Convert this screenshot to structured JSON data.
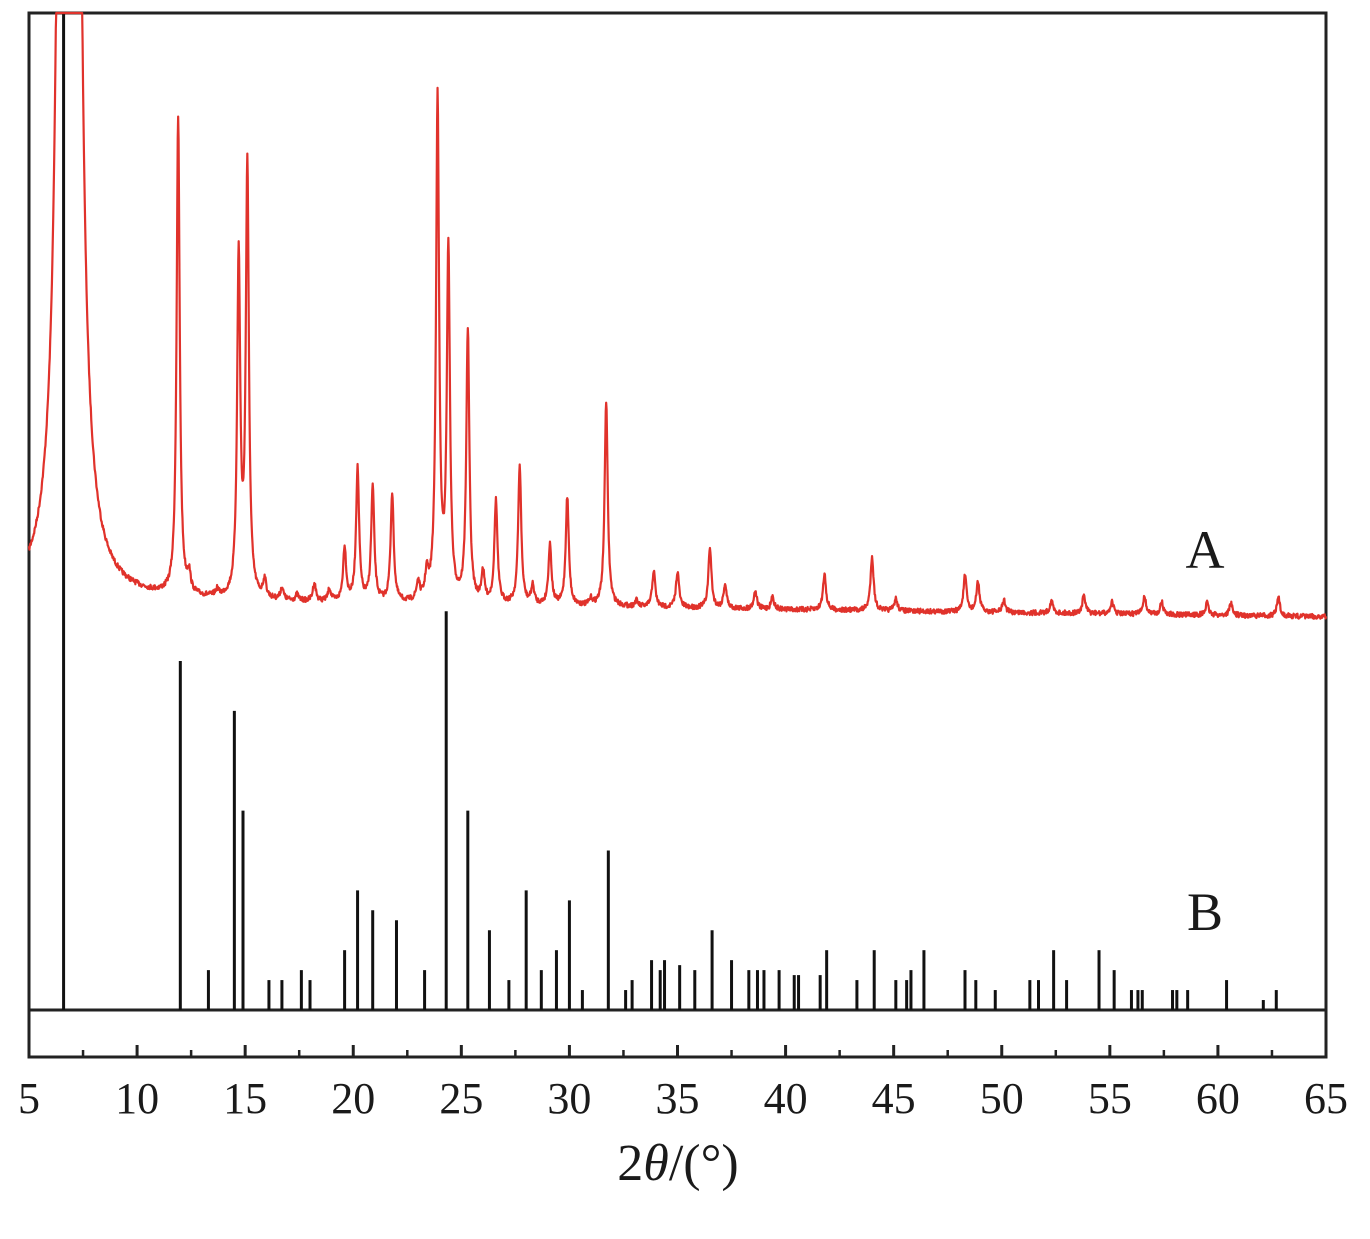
{
  "chart_data": {
    "type": "line",
    "xlabel_prefix": "2",
    "xlabel_symbol": "θ",
    "xlabel_suffix": "/(°)",
    "xlim": [
      5,
      65
    ],
    "xticks": [
      5,
      10,
      15,
      20,
      25,
      30,
      35,
      40,
      45,
      50,
      55,
      60,
      65
    ],
    "grid": false,
    "series": [
      {
        "name": "A",
        "style": "continuous pattern",
        "color": "#e0322b",
        "description_peaks": [
          {
            "x": 6.6,
            "y": 280
          },
          {
            "x": 7.1,
            "y": 300
          },
          {
            "x": 11.9,
            "y": 79
          },
          {
            "x": 12.4,
            "y": 3
          },
          {
            "x": 13.7,
            "y": 1
          },
          {
            "x": 14.7,
            "y": 56
          },
          {
            "x": 15.1,
            "y": 71
          },
          {
            "x": 15.9,
            "y": 3
          },
          {
            "x": 16.7,
            "y": 2
          },
          {
            "x": 17.4,
            "y": 1
          },
          {
            "x": 18.2,
            "y": 3
          },
          {
            "x": 18.9,
            "y": 2
          },
          {
            "x": 19.6,
            "y": 9
          },
          {
            "x": 20.2,
            "y": 22
          },
          {
            "x": 20.9,
            "y": 19
          },
          {
            "x": 21.8,
            "y": 18
          },
          {
            "x": 23.0,
            "y": 3
          },
          {
            "x": 23.4,
            "y": 4
          },
          {
            "x": 23.9,
            "y": 83
          },
          {
            "x": 24.4,
            "y": 58
          },
          {
            "x": 25.3,
            "y": 45
          },
          {
            "x": 26.0,
            "y": 5
          },
          {
            "x": 26.6,
            "y": 17
          },
          {
            "x": 27.7,
            "y": 23
          },
          {
            "x": 28.3,
            "y": 3
          },
          {
            "x": 29.1,
            "y": 10
          },
          {
            "x": 29.9,
            "y": 18
          },
          {
            "x": 31.0,
            "y": 1
          },
          {
            "x": 31.7,
            "y": 34
          },
          {
            "x": 33.1,
            "y": 1
          },
          {
            "x": 33.9,
            "y": 6
          },
          {
            "x": 35.0,
            "y": 6
          },
          {
            "x": 36.5,
            "y": 10
          },
          {
            "x": 37.2,
            "y": 4
          },
          {
            "x": 38.6,
            "y": 3
          },
          {
            "x": 39.4,
            "y": 2
          },
          {
            "x": 41.8,
            "y": 6
          },
          {
            "x": 44.0,
            "y": 9
          },
          {
            "x": 45.1,
            "y": 2
          },
          {
            "x": 48.3,
            "y": 6
          },
          {
            "x": 48.9,
            "y": 5
          },
          {
            "x": 50.1,
            "y": 2
          },
          {
            "x": 52.3,
            "y": 2
          },
          {
            "x": 53.8,
            "y": 3
          },
          {
            "x": 55.1,
            "y": 2
          },
          {
            "x": 56.6,
            "y": 3
          },
          {
            "x": 57.4,
            "y": 2
          },
          {
            "x": 59.5,
            "y": 2
          },
          {
            "x": 60.6,
            "y": 2
          },
          {
            "x": 62.8,
            "y": 3
          }
        ]
      },
      {
        "name": "B",
        "style": "stick pattern",
        "color": "#111111",
        "peaks": [
          {
            "x": 6.6,
            "y": 100
          },
          {
            "x": 12.0,
            "y": 35
          },
          {
            "x": 13.3,
            "y": 4
          },
          {
            "x": 14.5,
            "y": 30
          },
          {
            "x": 14.9,
            "y": 20
          },
          {
            "x": 16.1,
            "y": 3
          },
          {
            "x": 16.7,
            "y": 3
          },
          {
            "x": 17.6,
            "y": 4
          },
          {
            "x": 18.0,
            "y": 3
          },
          {
            "x": 19.6,
            "y": 6
          },
          {
            "x": 20.2,
            "y": 12
          },
          {
            "x": 20.9,
            "y": 10
          },
          {
            "x": 22.0,
            "y": 9
          },
          {
            "x": 23.3,
            "y": 4
          },
          {
            "x": 24.3,
            "y": 40
          },
          {
            "x": 25.3,
            "y": 20
          },
          {
            "x": 26.3,
            "y": 8
          },
          {
            "x": 27.2,
            "y": 3
          },
          {
            "x": 28.0,
            "y": 12
          },
          {
            "x": 28.7,
            "y": 4
          },
          {
            "x": 29.4,
            "y": 6
          },
          {
            "x": 30.0,
            "y": 11
          },
          {
            "x": 30.6,
            "y": 2
          },
          {
            "x": 31.8,
            "y": 16
          },
          {
            "x": 32.6,
            "y": 2
          },
          {
            "x": 32.9,
            "y": 3
          },
          {
            "x": 33.8,
            "y": 5
          },
          {
            "x": 34.2,
            "y": 4
          },
          {
            "x": 34.4,
            "y": 5
          },
          {
            "x": 35.1,
            "y": 4.5
          },
          {
            "x": 35.8,
            "y": 4
          },
          {
            "x": 36.6,
            "y": 8
          },
          {
            "x": 37.5,
            "y": 5
          },
          {
            "x": 38.3,
            "y": 4
          },
          {
            "x": 38.7,
            "y": 4
          },
          {
            "x": 39.0,
            "y": 4
          },
          {
            "x": 39.7,
            "y": 4
          },
          {
            "x": 40.4,
            "y": 3.5
          },
          {
            "x": 40.6,
            "y": 3.5
          },
          {
            "x": 41.6,
            "y": 3.5
          },
          {
            "x": 41.9,
            "y": 6
          },
          {
            "x": 43.3,
            "y": 3
          },
          {
            "x": 44.1,
            "y": 6
          },
          {
            "x": 45.1,
            "y": 3
          },
          {
            "x": 45.6,
            "y": 3
          },
          {
            "x": 45.8,
            "y": 4
          },
          {
            "x": 46.4,
            "y": 6
          },
          {
            "x": 48.3,
            "y": 4
          },
          {
            "x": 48.8,
            "y": 3
          },
          {
            "x": 49.7,
            "y": 2
          },
          {
            "x": 51.3,
            "y": 3
          },
          {
            "x": 51.7,
            "y": 3
          },
          {
            "x": 52.4,
            "y": 6
          },
          {
            "x": 53.0,
            "y": 3
          },
          {
            "x": 54.5,
            "y": 6
          },
          {
            "x": 55.2,
            "y": 4
          },
          {
            "x": 56.0,
            "y": 2
          },
          {
            "x": 56.3,
            "y": 2
          },
          {
            "x": 56.5,
            "y": 2
          },
          {
            "x": 57.9,
            "y": 2
          },
          {
            "x": 58.1,
            "y": 2
          },
          {
            "x": 58.6,
            "y": 2
          },
          {
            "x": 60.4,
            "y": 3
          },
          {
            "x": 62.1,
            "y": 1
          },
          {
            "x": 62.7,
            "y": 2
          }
        ]
      }
    ]
  }
}
